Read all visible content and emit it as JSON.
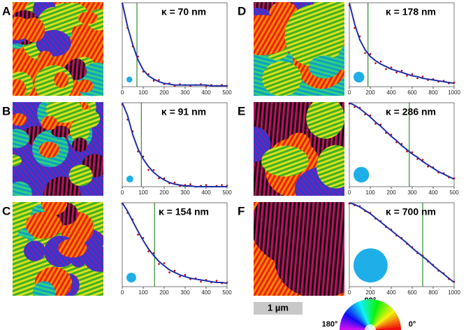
{
  "panels": [
    "A",
    "B",
    "C",
    "D",
    "E",
    "F"
  ],
  "scale_bar": "1 µm",
  "color_wheel": {
    "top": "90°",
    "left": "180°",
    "right": "0°"
  },
  "chart_data": [
    {
      "type": "scatter",
      "annotation": "κ =  70 nm",
      "kappa": 70,
      "xlim": [
        0,
        500
      ],
      "ylim": [
        0,
        1
      ],
      "xticks": [
        0,
        100,
        200,
        300,
        400,
        500
      ],
      "kappa_color": "#2e8b2e",
      "x": [
        0,
        25,
        50,
        75,
        100,
        125,
        150,
        175,
        200,
        225,
        250,
        275,
        300,
        325,
        350,
        375,
        400,
        425,
        450,
        475,
        500
      ],
      "series": [
        {
          "style": "points",
          "color": "#c00000",
          "values": [
            0.99,
            0.7,
            0.48,
            0.36,
            0.18,
            0.15,
            0.07,
            0.08,
            0.03,
            0.04,
            0.01,
            0.03,
            0.02,
            0.01,
            0.02,
            0.03,
            0.01,
            0.02,
            0.01,
            0.02,
            0.01
          ]
        },
        {
          "style": "line",
          "color": "#1f2fa8",
          "values": [
            1,
            0.72,
            0.5,
            0.32,
            0.2,
            0.13,
            0.09,
            0.06,
            0.04,
            0.03,
            0.02,
            0.02,
            0.02,
            0.02,
            0.02,
            0.02,
            0.02,
            0.01,
            0.01,
            0.01,
            0.01
          ]
        }
      ]
    },
    {
      "type": "scatter",
      "annotation": "κ =  91 nm",
      "kappa": 91,
      "xlim": [
        0,
        500
      ],
      "ylim": [
        0,
        1
      ],
      "xticks": [
        0,
        100,
        200,
        300,
        400,
        500
      ],
      "kappa_color": "#2e8b2e",
      "x": [
        0,
        25,
        50,
        75,
        100,
        125,
        150,
        175,
        200,
        225,
        250,
        275,
        300,
        325,
        350,
        375,
        400,
        425,
        450,
        475,
        500
      ],
      "series": [
        {
          "style": "points",
          "color": "#c00000",
          "values": [
            0.98,
            0.8,
            0.66,
            0.42,
            0.36,
            0.2,
            0.2,
            0.1,
            0.1,
            0.04,
            0.05,
            0.01,
            0.02,
            0.03,
            0,
            0.01,
            0.02,
            0,
            0.01,
            0.02,
            0.01
          ]
        },
        {
          "style": "line",
          "color": "#1f2fa8",
          "values": [
            1,
            0.85,
            0.62,
            0.45,
            0.33,
            0.24,
            0.17,
            0.12,
            0.08,
            0.05,
            0.03,
            0.02,
            0.01,
            0.01,
            0,
            0,
            0,
            0,
            0,
            0,
            0
          ]
        }
      ]
    },
    {
      "type": "scatter",
      "annotation": "κ = 154 nm",
      "kappa": 154,
      "xlim": [
        0,
        500
      ],
      "ylim": [
        0,
        1
      ],
      "xticks": [
        0,
        100,
        200,
        300,
        400,
        500
      ],
      "kappa_color": "#2e8b2e",
      "x": [
        0,
        25,
        50,
        75,
        100,
        125,
        150,
        175,
        200,
        225,
        250,
        275,
        300,
        325,
        350,
        375,
        400,
        425,
        450,
        475,
        500
      ],
      "series": [
        {
          "style": "points",
          "color": "#c00000",
          "values": [
            0.99,
            0.88,
            0.8,
            0.62,
            0.58,
            0.42,
            0.4,
            0.27,
            0.28,
            0.17,
            0.19,
            0.12,
            0.14,
            0.09,
            0.1,
            0.06,
            0.08,
            0.05,
            0.07,
            0.04,
            0.05
          ]
        },
        {
          "style": "line",
          "color": "#1f2fa8",
          "values": [
            1,
            0.9,
            0.78,
            0.66,
            0.55,
            0.45,
            0.37,
            0.3,
            0.25,
            0.2,
            0.17,
            0.14,
            0.12,
            0.1,
            0.09,
            0.08,
            0.07,
            0.06,
            0.05,
            0.05,
            0.04
          ]
        }
      ]
    },
    {
      "type": "scatter",
      "annotation": "κ = 178 nm",
      "kappa": 178,
      "xlim": [
        0,
        1000
      ],
      "ylim": [
        0,
        1
      ],
      "xticks": [
        0,
        200,
        400,
        600,
        800,
        1000
      ],
      "kappa_color": "#2e8b2e",
      "x": [
        0,
        50,
        100,
        150,
        200,
        250,
        300,
        350,
        400,
        450,
        500,
        550,
        600,
        650,
        700,
        750,
        800,
        850,
        900,
        950,
        1000
      ],
      "series": [
        {
          "style": "points",
          "color": "#c00000",
          "values": [
            0.97,
            0.7,
            0.6,
            0.4,
            0.39,
            0.28,
            0.3,
            0.21,
            0.23,
            0.17,
            0.19,
            0.13,
            0.15,
            0.1,
            0.12,
            0.08,
            0.09,
            0.06,
            0.07,
            0.04,
            0.05
          ]
        },
        {
          "style": "line",
          "color": "#1f2fa8",
          "values": [
            1,
            0.75,
            0.56,
            0.44,
            0.36,
            0.31,
            0.27,
            0.24,
            0.21,
            0.19,
            0.17,
            0.15,
            0.13,
            0.12,
            0.1,
            0.09,
            0.08,
            0.07,
            0.06,
            0.05,
            0.04
          ]
        }
      ]
    },
    {
      "type": "scatter",
      "annotation": "κ = 286 nm",
      "kappa": 286,
      "xlim": [
        0,
        500
      ],
      "ylim": [
        0,
        1
      ],
      "xticks": [
        0,
        100,
        200,
        300,
        400,
        500
      ],
      "kappa_color": "#2e8b2e",
      "x": [
        0,
        25,
        50,
        75,
        100,
        125,
        150,
        175,
        200,
        225,
        250,
        275,
        300,
        325,
        350,
        375,
        400,
        425,
        450,
        475,
        500
      ],
      "series": [
        {
          "style": "points",
          "color": "#c00000",
          "values": [
            0.99,
            0.95,
            0.94,
            0.86,
            0.85,
            0.75,
            0.74,
            0.64,
            0.62,
            0.53,
            0.51,
            0.42,
            0.41,
            0.33,
            0.32,
            0.24,
            0.23,
            0.17,
            0.16,
            0.11,
            0.1
          ]
        },
        {
          "style": "line",
          "color": "#1f2fa8",
          "values": [
            1,
            0.97,
            0.93,
            0.88,
            0.83,
            0.77,
            0.72,
            0.66,
            0.6,
            0.55,
            0.49,
            0.44,
            0.39,
            0.35,
            0.3,
            0.26,
            0.22,
            0.18,
            0.15,
            0.12,
            0.09
          ]
        }
      ]
    },
    {
      "type": "scatter",
      "annotation": "κ = 700 nm",
      "kappa": 700,
      "xlim": [
        0,
        1000
      ],
      "ylim": [
        0,
        1
      ],
      "xticks": [
        0,
        200,
        400,
        600,
        800,
        1000
      ],
      "kappa_color": "#2e8b2e",
      "x": [
        0,
        50,
        100,
        150,
        200,
        250,
        300,
        350,
        400,
        450,
        500,
        550,
        600,
        650,
        700,
        750,
        800,
        850,
        900,
        950,
        1000
      ],
      "series": [
        {
          "style": "points",
          "color": "#c00000",
          "values": [
            0.99,
            0.97,
            0.96,
            0.9,
            0.88,
            0.81,
            0.78,
            0.71,
            0.68,
            0.61,
            0.58,
            0.51,
            0.47,
            0.4,
            0.37,
            0.3,
            0.26,
            0.19,
            0.16,
            0.09,
            0.06
          ]
        },
        {
          "style": "line",
          "color": "#1f2fa8",
          "values": [
            1,
            0.98,
            0.95,
            0.91,
            0.87,
            0.82,
            0.77,
            0.72,
            0.67,
            0.62,
            0.57,
            0.52,
            0.46,
            0.41,
            0.36,
            0.31,
            0.25,
            0.2,
            0.15,
            0.1,
            0.05
          ]
        }
      ]
    }
  ]
}
